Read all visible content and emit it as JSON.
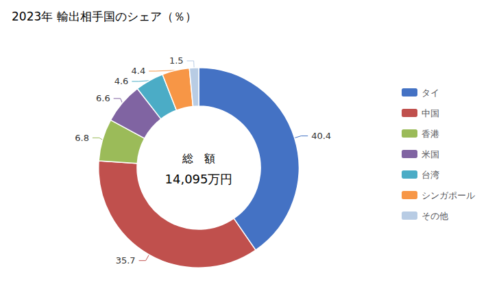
{
  "chart_data": {
    "type": "pie",
    "title": "2023年 輸出相手国のシェア（％）",
    "annotations": [
      "総　額",
      "14,095万円"
    ],
    "categories": [
      "タイ",
      "中国",
      "香港",
      "米国",
      "台湾",
      "シンガポール",
      "その他"
    ],
    "values": [
      40.4,
      35.7,
      6.8,
      6.6,
      4.6,
      4.4,
      1.5
    ],
    "colors": [
      "#4472C4",
      "#C0504D",
      "#9BBB59",
      "#8064A2",
      "#4BACC6",
      "#F79646",
      "#B8CCE4"
    ],
    "legend": "right",
    "data_labels": true
  }
}
